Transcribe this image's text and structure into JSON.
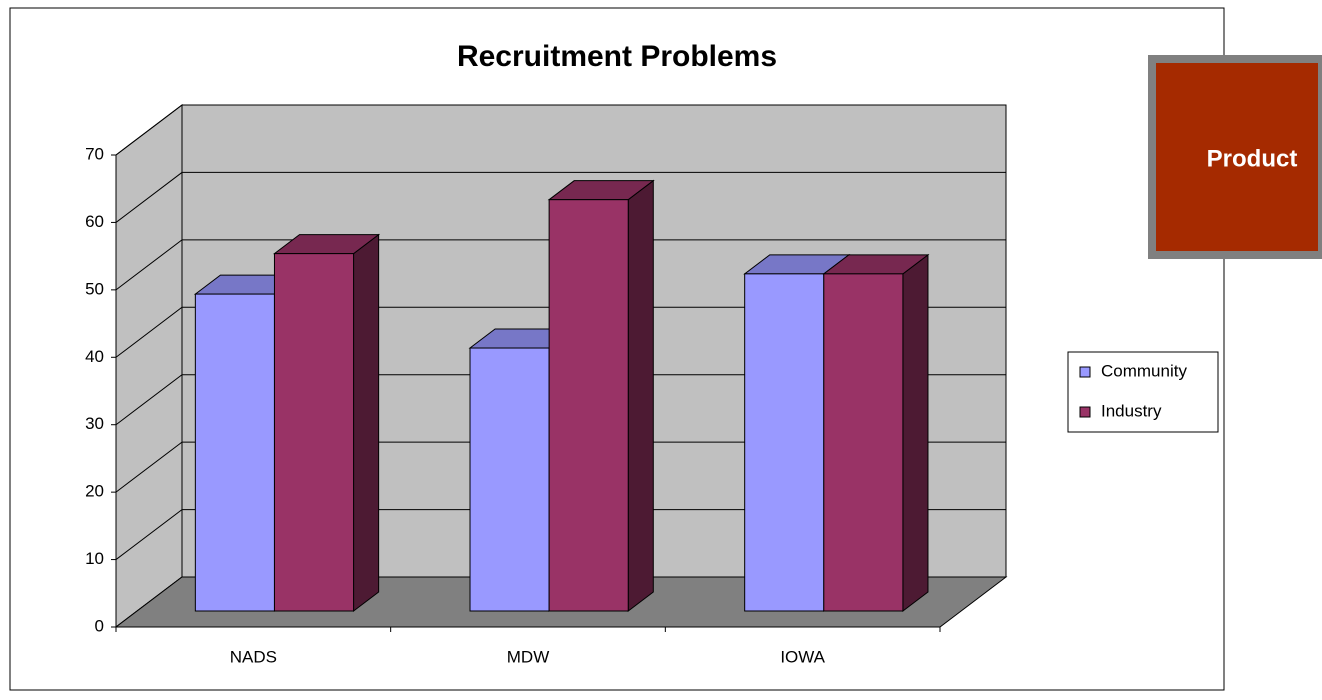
{
  "chart_data": {
    "type": "bar3d",
    "title": "Recruitment Problems",
    "categories": [
      "NADS",
      "MDW",
      "IOWA"
    ],
    "series": [
      {
        "name": "Community",
        "color": "#9999ff",
        "values": [
          47,
          39,
          50
        ]
      },
      {
        "name": "Industry",
        "color": "#993366",
        "values": [
          53,
          61,
          50
        ]
      }
    ],
    "ylim": [
      0,
      70
    ],
    "yticks": [
      0,
      10,
      20,
      30,
      40,
      50,
      60,
      70
    ],
    "grid": true,
    "legend": "right",
    "annotation": "Product"
  }
}
